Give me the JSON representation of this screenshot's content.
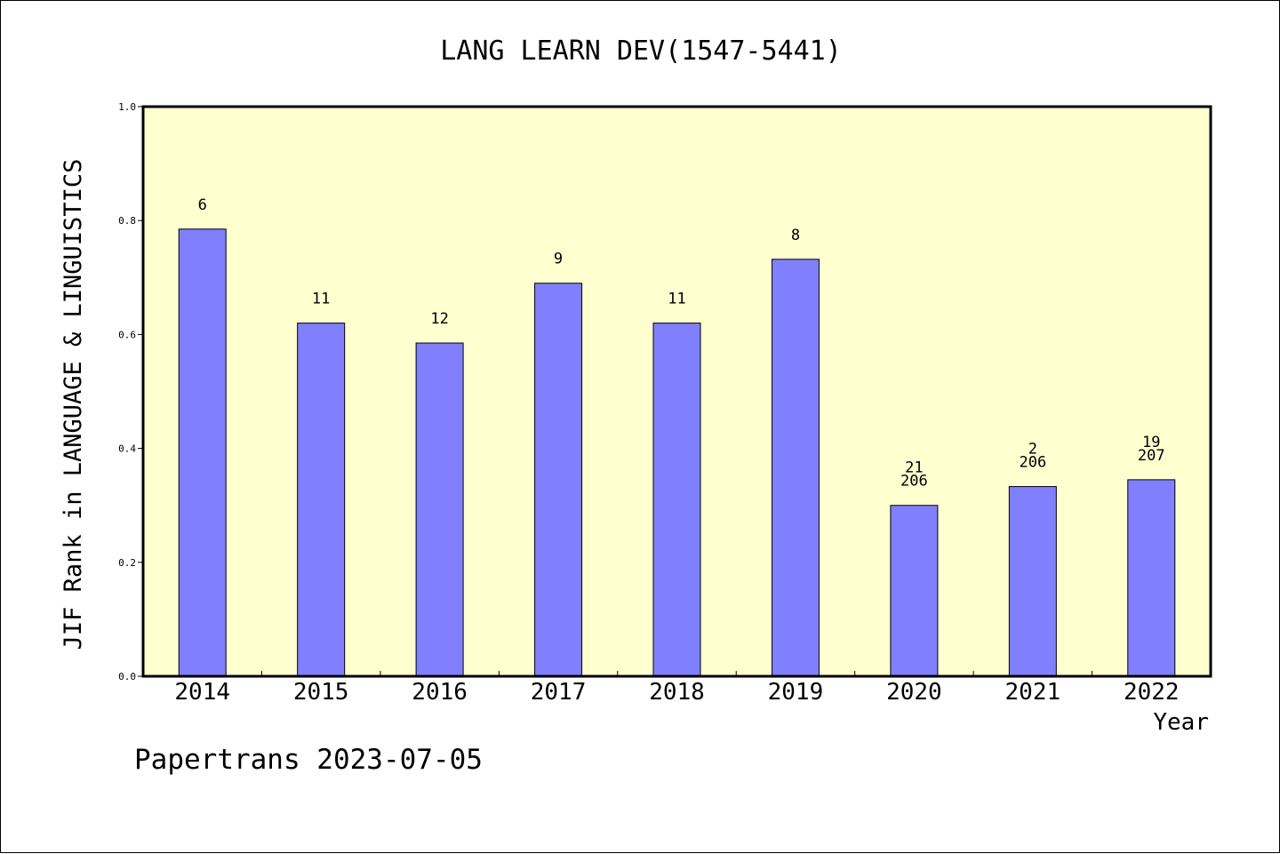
{
  "chart_data": {
    "type": "bar",
    "title": "LANG LEARN DEV(1547-5441)",
    "xlabel": "Year",
    "ylabel": "JIF Rank in LANGUAGE & LINGUISTICS",
    "ylim": [
      0,
      1.0
    ],
    "yticks": [
      "0.0",
      "0.2",
      "0.4",
      "0.6",
      "0.8",
      "1.0"
    ],
    "grid": false,
    "colors": {
      "bar": "#8080ff",
      "plot_bg": "#ffffd0",
      "axis": "#000000"
    },
    "categories": [
      "2014",
      "2015",
      "2016",
      "2017",
      "2018",
      "2019",
      "2020",
      "2021",
      "2022"
    ],
    "values": [
      0.785,
      0.62,
      0.585,
      0.69,
      0.62,
      0.732,
      0.3,
      0.333,
      0.345
    ],
    "labels": [
      [
        "6"
      ],
      [
        "11"
      ],
      [
        "12"
      ],
      [
        "9"
      ],
      [
        "11"
      ],
      [
        "8"
      ],
      [
        "21",
        "206"
      ],
      [
        "2",
        "206"
      ],
      [
        "19",
        "207"
      ]
    ]
  },
  "footer": "Papertrans 2023-07-05"
}
